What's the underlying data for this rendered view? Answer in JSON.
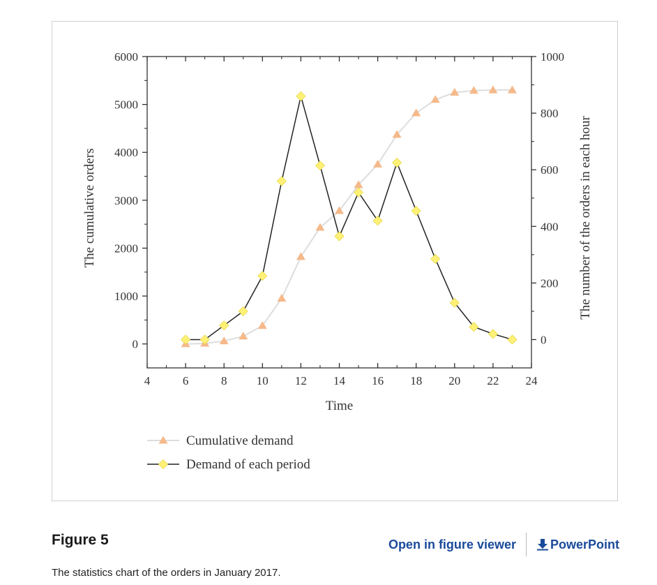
{
  "figure": {
    "label": "Figure 5",
    "caption": "The statistics chart of the orders in January 2017.",
    "open_viewer_label": "Open in figure viewer",
    "powerpoint_label": "PowerPoint"
  },
  "colors": {
    "cumulative_marker": "#f5b98a",
    "cumulative_line": "#dddddd",
    "period_marker": "#fff176",
    "period_line": "#222222",
    "link": "#1a4a9a"
  },
  "chart_data": {
    "type": "line",
    "xlabel": "Time",
    "ylabel": "The cumulative orders",
    "y2label": "The number of the orders in each hour",
    "xlim": [
      4,
      24
    ],
    "ylim": [
      -500,
      6000
    ],
    "y2lim": [
      -100,
      1000
    ],
    "x_ticks": [
      4,
      6,
      8,
      10,
      12,
      14,
      16,
      18,
      20,
      22,
      24
    ],
    "y_ticks": [
      0,
      1000,
      2000,
      3000,
      4000,
      5000,
      6000
    ],
    "y2_ticks": [
      0,
      200,
      400,
      600,
      800,
      1000
    ],
    "legend_position": "bottom-left",
    "x": [
      6,
      7,
      8,
      9,
      10,
      11,
      12,
      13,
      14,
      15,
      16,
      17,
      18,
      19,
      20,
      21,
      22,
      23
    ],
    "series": [
      {
        "name": "Cumulative demand",
        "axis": "left",
        "marker": "triangle",
        "values": [
          0,
          10,
          60,
          160,
          380,
          950,
          1820,
          2430,
          2780,
          3320,
          3750,
          4370,
          4820,
          5100,
          5250,
          5290,
          5300,
          5300
        ]
      },
      {
        "name": "Demand of each period",
        "axis": "right",
        "marker": "diamond",
        "values": [
          0,
          0,
          50,
          100,
          225,
          560,
          860,
          615,
          365,
          520,
          420,
          625,
          455,
          285,
          130,
          45,
          20,
          0
        ]
      }
    ]
  }
}
